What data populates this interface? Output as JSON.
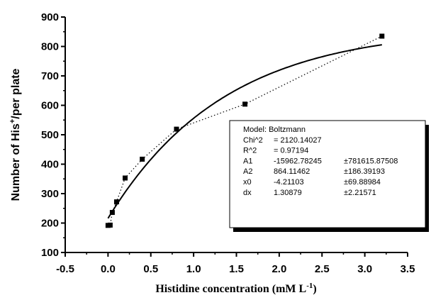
{
  "chart_data": {
    "type": "scatter",
    "xlabel_main": "Histidine concentration (mM L",
    "xlabel_sup": "-1",
    "xlabel_end": ")",
    "ylabel_main": "Number of His",
    "ylabel_sup": "+",
    "ylabel_end": "/per plate",
    "xlim": [
      -0.5,
      3.5
    ],
    "ylim": [
      100,
      900
    ],
    "xticks": [
      "-0.5",
      "0.0",
      "0.5",
      "1.0",
      "1.5",
      "2.0",
      "2.5",
      "3.0",
      "3.5"
    ],
    "yticks": [
      "100",
      "200",
      "300",
      "400",
      "500",
      "600",
      "700",
      "800",
      "900"
    ],
    "grid": false,
    "series": [
      {
        "marker": "square",
        "line": "dotted",
        "x": [
          0.0,
          0.025,
          0.05,
          0.1,
          0.2,
          0.4,
          0.8,
          1.6,
          3.2
        ],
        "y": [
          192,
          193,
          236,
          272,
          353,
          417,
          519,
          604,
          835
        ]
      }
    ],
    "fit": {
      "model_name": "Boltzmann",
      "A1": -15962.78245,
      "A2": 864.11462,
      "x0": -4.21103,
      "dx": 1.30879,
      "x_range": [
        0.0,
        3.2
      ]
    },
    "fit_box": {
      "rows": [
        {
          "label": "Model: Boltzmann",
          "value": "",
          "error": ""
        },
        {
          "label": "Chi^2",
          "value": "= 2120.14027",
          "error": ""
        },
        {
          "label": "R^2",
          "value": "= 0.97194",
          "error": ""
        },
        {
          "label": "A1",
          "value": "-15962.78245",
          "error": "±781615.87508"
        },
        {
          "label": "A2",
          "value": "864.11462",
          "error": "±186.39193"
        },
        {
          "label": "x0",
          "value": "-4.21103",
          "error": "±69.88984"
        },
        {
          "label": "dx",
          "value": "1.30879",
          "error": "±2.21571"
        }
      ]
    }
  }
}
